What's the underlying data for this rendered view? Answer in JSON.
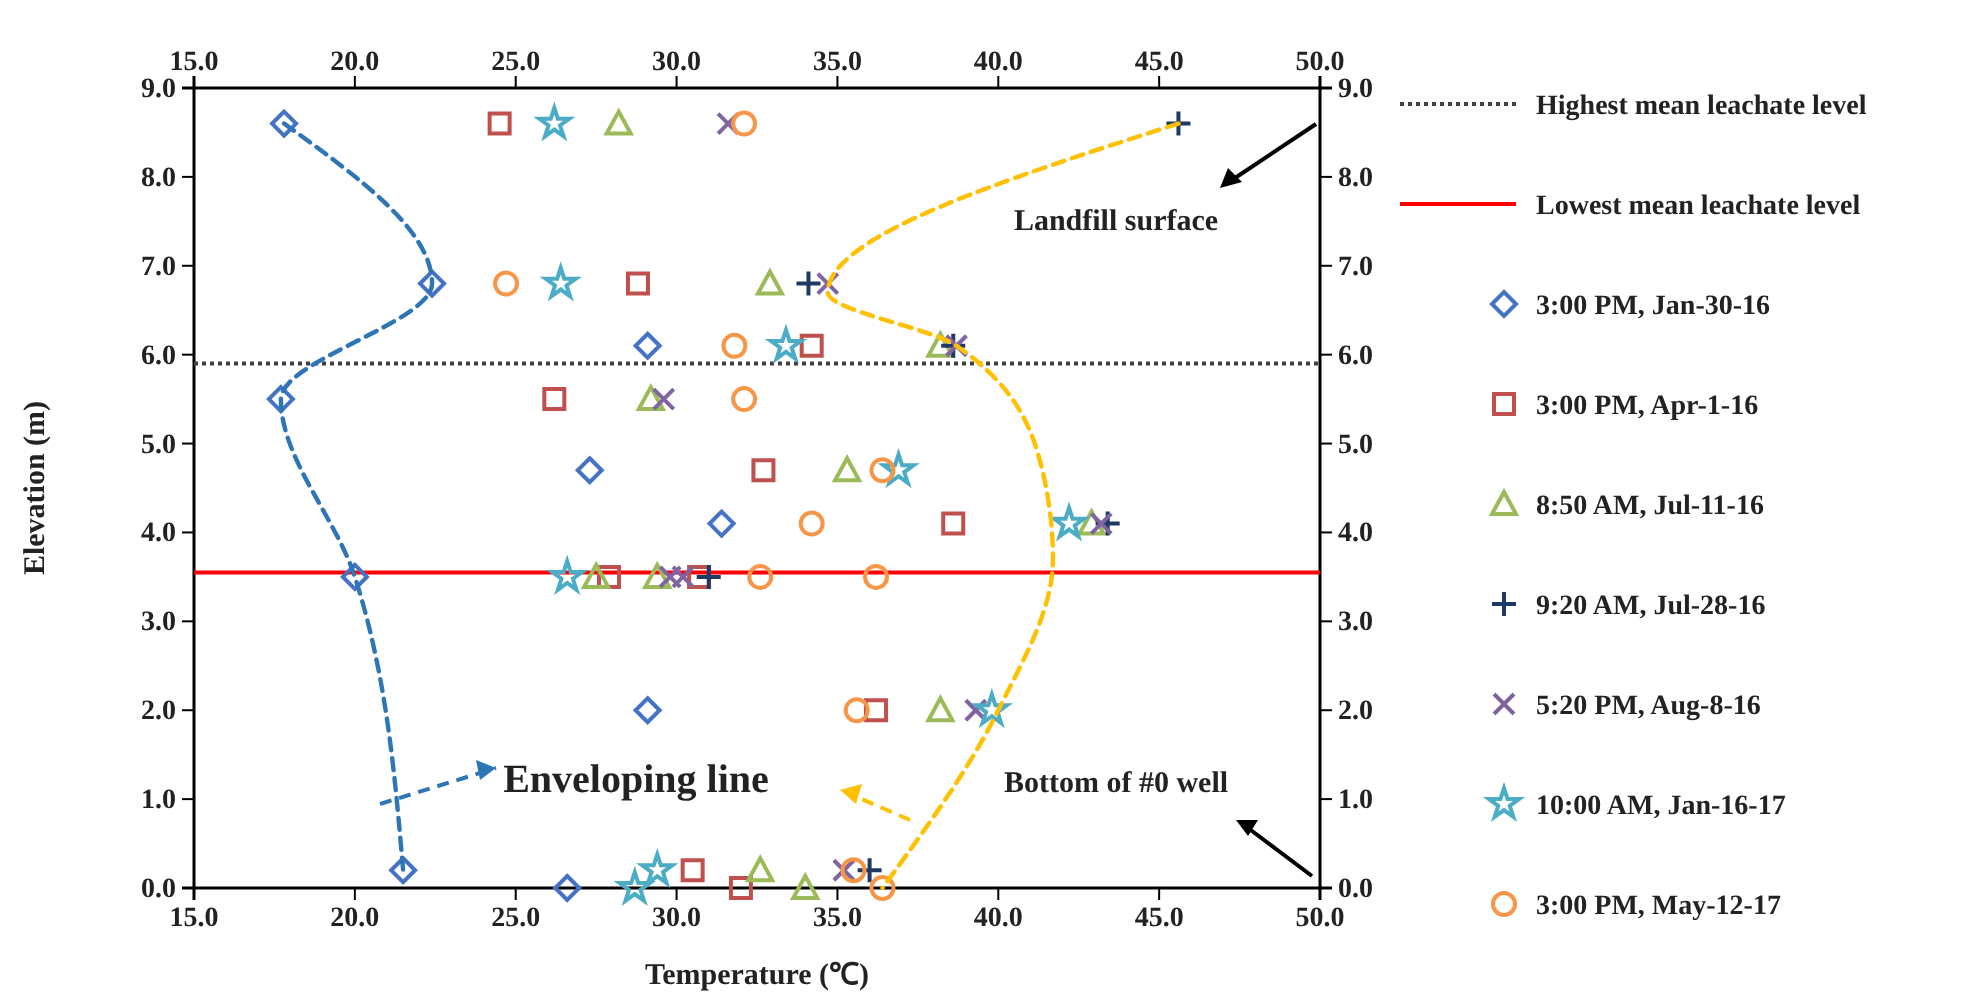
{
  "chart_data": {
    "type": "scatter",
    "xlabel": "Temperature (℃)",
    "ylabel": "Elevation (m)",
    "xlim": [
      15,
      50
    ],
    "xticks": [
      {
        "value": 15,
        "label": "15.0"
      },
      {
        "value": 20,
        "label": "20.0"
      },
      {
        "value": 25,
        "label": "25.0"
      },
      {
        "value": 30,
        "label": "30.0"
      },
      {
        "value": 35,
        "label": "35.0"
      },
      {
        "value": 40,
        "label": "40.0"
      },
      {
        "value": 45,
        "label": "45.0"
      },
      {
        "value": 50,
        "label": "50.0"
      }
    ],
    "x2lim": [
      15,
      50
    ],
    "x2ticks": [
      {
        "value": 15,
        "label": "15.0"
      },
      {
        "value": 20,
        "label": "20.0"
      },
      {
        "value": 25,
        "label": "25.0"
      },
      {
        "value": 30,
        "label": "30.0"
      },
      {
        "value": 35,
        "label": "35.0"
      },
      {
        "value": 40,
        "label": "40.0"
      },
      {
        "value": 45,
        "label": "45.0"
      },
      {
        "value": 50,
        "label": "50.0"
      }
    ],
    "ylim": [
      0,
      9
    ],
    "yticks": [
      {
        "value": 0,
        "label": "0.0"
      },
      {
        "value": 1,
        "label": "1.0"
      },
      {
        "value": 2,
        "label": "2.0"
      },
      {
        "value": 3,
        "label": "3.0"
      },
      {
        "value": 4,
        "label": "4.0"
      },
      {
        "value": 5,
        "label": "5.0"
      },
      {
        "value": 6,
        "label": "6.0"
      },
      {
        "value": 7,
        "label": "7.0"
      },
      {
        "value": 8,
        "label": "8.0"
      },
      {
        "value": 9,
        "label": "9.0"
      }
    ],
    "y2lim": [
      0,
      9
    ],
    "y2ticks": [
      {
        "value": 0,
        "label": "0.0"
      },
      {
        "value": 1,
        "label": "1.0"
      },
      {
        "value": 2,
        "label": "2.0"
      },
      {
        "value": 3,
        "label": "3.0"
      },
      {
        "value": 4,
        "label": "4.0"
      },
      {
        "value": 5,
        "label": "5.0"
      },
      {
        "value": 6,
        "label": "6.0"
      },
      {
        "value": 7,
        "label": "7.0"
      },
      {
        "value": 8,
        "label": "8.0"
      },
      {
        "value": 9,
        "label": "9.0"
      }
    ],
    "grid": false,
    "legend": "right",
    "ref_lines": [
      {
        "axis": "y",
        "value": 5.9,
        "label": "Highest mean leachate level",
        "color": "#404040",
        "line_style": "dotted"
      },
      {
        "axis": "y",
        "value": 3.55,
        "label": "Lowest mean leachate level",
        "color": "#ff0000",
        "line_style": "solid"
      }
    ],
    "annotations": [
      "Enveloping line",
      "Landfill surface",
      "Bottom of #0 well"
    ],
    "series": [
      {
        "name": "3:00 PM, Jan-30-16",
        "color": "#4472c4",
        "marker": "diamond",
        "x": [
          17.8,
          22.4,
          29.1,
          17.7,
          27.3,
          31.4,
          20.0,
          29.1,
          21.5,
          26.6
        ],
        "values": [
          8.6,
          6.8,
          6.1,
          5.5,
          4.7,
          4.1,
          3.5,
          2.0,
          0.2,
          0.0
        ]
      },
      {
        "name": "3:00 PM, Apr-1-16",
        "color": "#c0504d",
        "marker": "square",
        "x": [
          24.5,
          28.8,
          34.2,
          26.2,
          32.7,
          38.6,
          27.9,
          30.7,
          36.2,
          30.5,
          32.0
        ],
        "values": [
          8.6,
          6.8,
          6.1,
          5.5,
          4.7,
          4.1,
          3.5,
          3.5,
          2.0,
          0.2,
          0.0
        ]
      },
      {
        "name": "8:50 AM, Jul-11-16",
        "color": "#9bbb59",
        "marker": "triangle",
        "x": [
          28.2,
          32.9,
          38.2,
          29.2,
          35.3,
          42.9,
          27.5,
          29.4,
          38.2,
          32.6,
          34.0
        ],
        "values": [
          8.6,
          6.8,
          6.1,
          5.5,
          4.7,
          4.1,
          3.5,
          3.5,
          2.0,
          0.2,
          0.0
        ]
      },
      {
        "name": "9:20 AM, Jul-28-16",
        "color": "#1f3864",
        "marker": "cross",
        "x": [
          45.6,
          34.1,
          38.6,
          43.4,
          31.0,
          36.0
        ],
        "values": [
          8.6,
          6.8,
          6.1,
          4.1,
          3.5,
          0.2
        ]
      },
      {
        "name": "5:20 PM, Aug-8-16",
        "color": "#8064a2",
        "marker": "x",
        "x": [
          31.6,
          34.7,
          38.7,
          29.6,
          43.2,
          29.8,
          30.2,
          39.3,
          35.2
        ],
        "values": [
          8.6,
          6.8,
          6.1,
          5.5,
          4.1,
          3.5,
          3.5,
          2.0,
          0.2
        ]
      },
      {
        "name": "10:00 AM, Jan-16-17",
        "color": "#4bacc6",
        "marker": "star",
        "x": [
          26.2,
          26.4,
          33.4,
          36.9,
          42.2,
          26.6,
          39.8,
          29.4,
          28.7
        ],
        "values": [
          8.6,
          6.8,
          6.1,
          4.7,
          4.1,
          3.5,
          2.0,
          0.2,
          0.0
        ]
      },
      {
        "name": "3:00 PM, May-12-17",
        "color": "#f79646",
        "marker": "circle",
        "x": [
          32.1,
          24.7,
          31.8,
          32.1,
          36.4,
          34.2,
          32.6,
          36.2,
          35.6,
          35.5,
          36.4
        ],
        "values": [
          8.6,
          6.8,
          6.1,
          5.5,
          4.7,
          4.1,
          3.5,
          3.5,
          2.0,
          0.2,
          0.0
        ]
      },
      {
        "type": "line",
        "color": "#2e75b6",
        "marker": "none",
        "line_style": "dashed",
        "x": [
          17.8,
          22.4,
          17.7,
          20.0,
          21.5
        ],
        "values": [
          8.6,
          6.8,
          5.5,
          3.5,
          0.2
        ]
      },
      {
        "type": "line",
        "color": "#ffc000",
        "marker": "none",
        "line_style": "dashed",
        "x": [
          45.6,
          34.7,
          38.7,
          41.3,
          41.7,
          40.0,
          36.4
        ],
        "values": [
          8.6,
          6.7,
          6.1,
          4.8,
          3.7,
          2.0,
          0.0
        ]
      }
    ]
  }
}
